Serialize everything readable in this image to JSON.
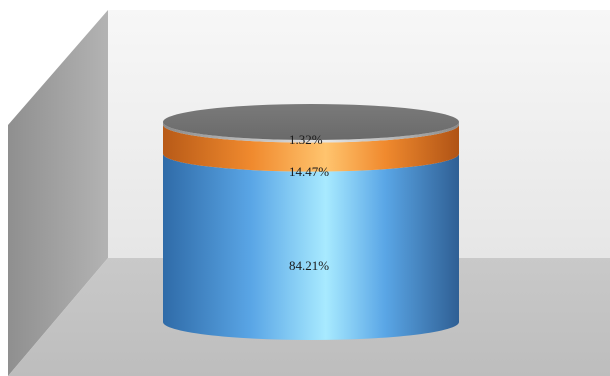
{
  "chart_data": {
    "type": "stacked-cylinder",
    "title": "",
    "categories": [
      ""
    ],
    "series": [
      {
        "values": [
          84.21
        ],
        "color": "#3a86c8",
        "label": "84.21%"
      },
      {
        "values": [
          14.47
        ],
        "color": "#e8782a",
        "label": "14.47%"
      },
      {
        "values": [
          1.32
        ],
        "color": "#a6a6a6",
        "label": "1.32%"
      }
    ],
    "ylim": [
      0,
      100
    ],
    "grid": false,
    "legend": "none"
  }
}
